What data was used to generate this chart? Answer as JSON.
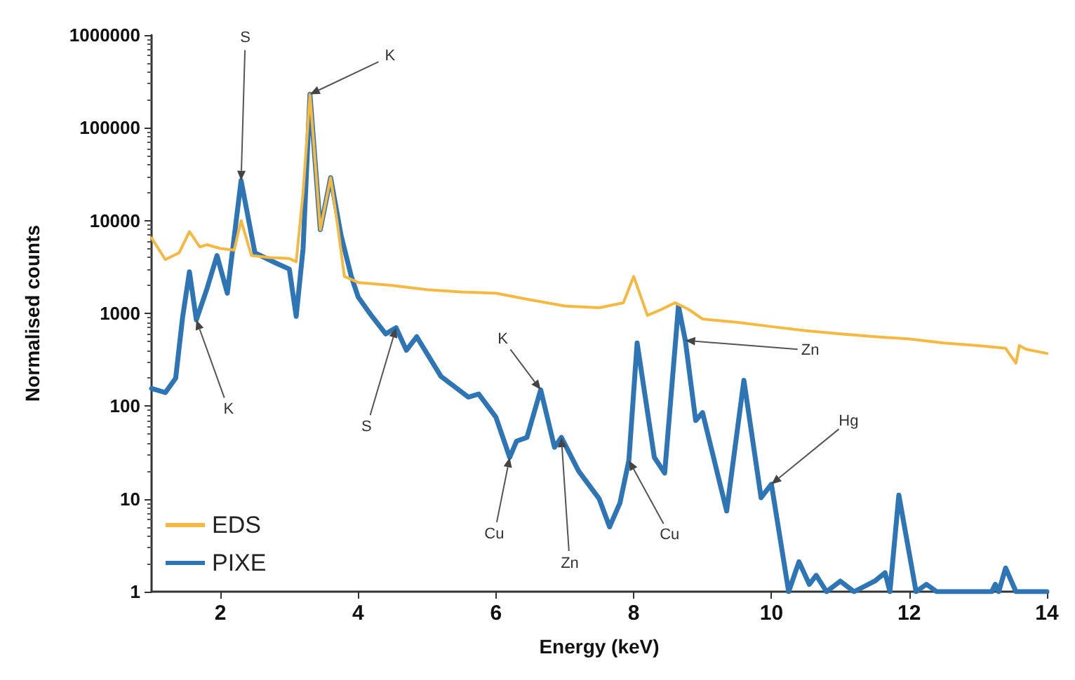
{
  "chart_data": {
    "type": "line",
    "xlabel": "Energy (keV)",
    "ylabel": "Normalised counts",
    "xlim": [
      1,
      14
    ],
    "xticks": [
      2,
      4,
      6,
      8,
      10,
      12,
      14
    ],
    "ylim": [
      1,
      1000000
    ],
    "yticks": [
      1,
      10,
      100,
      1000,
      10000,
      100000,
      1000000
    ],
    "log": "y",
    "grid": false,
    "legend": "bottom left",
    "marker": "none",
    "line_style": "solid",
    "series": [
      {
        "name": "EDS",
        "color": "#f5b942",
        "x": [
          1,
          1.2,
          1.4,
          1.55,
          1.7,
          1.8,
          2.0,
          2.2,
          2.3,
          2.45,
          2.7,
          3.0,
          3.1,
          3.2,
          3.3,
          3.45,
          3.6,
          3.7,
          3.8,
          4.0,
          4.5,
          5.0,
          5.5,
          6.0,
          6.5,
          7.0,
          7.5,
          7.85,
          8.0,
          8.2,
          8.4,
          8.6,
          8.8,
          9.0,
          9.5,
          10.0,
          10.5,
          11.0,
          11.5,
          12.0,
          12.5,
          13.0,
          13.4,
          13.55,
          13.6,
          13.7,
          14
        ],
        "values": [
          6500,
          3800,
          4500,
          7600,
          5200,
          5500,
          5000,
          4800,
          10000,
          4200,
          4000,
          3900,
          3600,
          20000,
          230000,
          8000,
          29000,
          9000,
          2500,
          2150,
          2000,
          1800,
          1700,
          1650,
          1400,
          1200,
          1150,
          1300,
          2500,
          950,
          1100,
          1300,
          1100,
          870,
          800,
          720,
          650,
          600,
          560,
          530,
          480,
          450,
          420,
          290,
          450,
          410,
          370
        ]
      },
      {
        "name": "PIXE",
        "color": "#2e75b6",
        "x": [
          1,
          1.2,
          1.35,
          1.45,
          1.55,
          1.65,
          1.8,
          1.95,
          2.1,
          2.3,
          2.5,
          2.8,
          3.0,
          3.1,
          3.2,
          3.3,
          3.45,
          3.6,
          3.75,
          3.9,
          4.0,
          4.2,
          4.4,
          4.55,
          4.7,
          4.85,
          5.2,
          5.6,
          5.75,
          6.0,
          6.2,
          6.3,
          6.45,
          6.65,
          6.85,
          6.95,
          7.2,
          7.5,
          7.65,
          7.8,
          7.93,
          8.05,
          8.3,
          8.45,
          8.65,
          8.75,
          8.9,
          9.0,
          9.35,
          9.6,
          9.85,
          10.0,
          10.25,
          10.4,
          10.55,
          10.65,
          10.8,
          11.0,
          11.2,
          11.5,
          11.65,
          11.72,
          11.85,
          12.1,
          12.25,
          12.4,
          13.2,
          13.25,
          13.3,
          13.4,
          13.55,
          14
        ],
        "values": [
          155,
          140,
          200,
          900,
          2800,
          850,
          1800,
          4200,
          1650,
          27000,
          4500,
          3500,
          3000,
          930,
          5000,
          230000,
          8000,
          29000,
          7000,
          2500,
          1500,
          930,
          600,
          700,
          400,
          560,
          210,
          125,
          135,
          76,
          28,
          42,
          46,
          150,
          36,
          46,
          20,
          10,
          5,
          9,
          26,
          480,
          28,
          19,
          1200,
          510,
          70,
          85,
          7.4,
          190,
          10.3,
          14.4,
          1,
          2.1,
          1.2,
          1.5,
          1,
          1.3,
          1,
          1.3,
          1.6,
          1,
          11,
          1,
          1.2,
          1,
          1,
          1.2,
          1,
          1.8,
          1,
          1
        ]
      }
    ],
    "annotations": [
      {
        "text": "S",
        "x": 2.3,
        "y": 27000
      },
      {
        "text": "K",
        "x": 3.3,
        "y": 230000
      },
      {
        "text": "S",
        "x": 4.55,
        "y": 700
      },
      {
        "text": "K",
        "x": 1.65,
        "y": 850
      },
      {
        "text": "Cu",
        "x": 6.2,
        "y": 28
      },
      {
        "text": "K",
        "x": 6.65,
        "y": 150
      },
      {
        "text": "Zn",
        "x": 6.95,
        "y": 46
      },
      {
        "text": "Cu",
        "x": 7.93,
        "y": 26
      },
      {
        "text": "Zn",
        "x": 8.75,
        "y": 510
      },
      {
        "text": "Hg",
        "x": 10.0,
        "y": 14.4
      }
    ]
  }
}
